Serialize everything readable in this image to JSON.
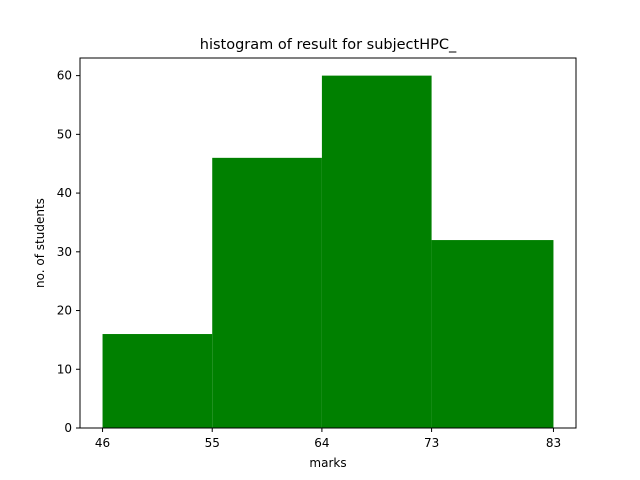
{
  "chart_data": {
    "type": "bar",
    "title": "histogram of result for subjectHPC_",
    "xlabel": "marks",
    "ylabel": "no. of students",
    "bin_edges": [
      46,
      55,
      64,
      73,
      83
    ],
    "values": [
      16,
      46,
      60,
      32
    ],
    "x_ticks": [
      46,
      55,
      64,
      73,
      83
    ],
    "y_ticks": [
      0,
      10,
      20,
      30,
      40,
      50,
      60
    ],
    "xlim": [
      44.15,
      84.85
    ],
    "ylim": [
      0,
      63
    ],
    "bar_color": "#008000",
    "grid": false
  }
}
